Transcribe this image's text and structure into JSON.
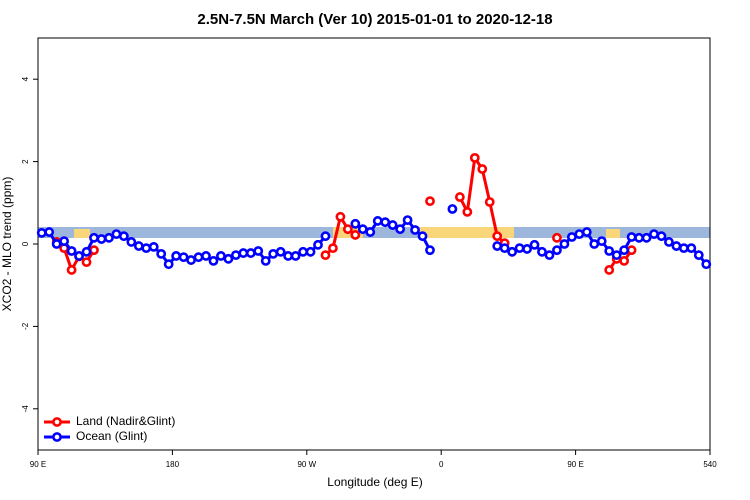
{
  "chart_data": {
    "type": "line",
    "title": "2.5N-7.5N March (Ver 10)   2015-01-01 to 2020-12-18",
    "xlabel": "Longitude (deg E)",
    "ylabel": "XCO2 - MLO trend (ppm)",
    "xlim": [
      90,
      540
    ],
    "xticks": [
      {
        "value": 90,
        "label": "90 E"
      },
      180,
      {
        "value": 270,
        "label": "90 W"
      },
      {
        "value": 360,
        "label": "0"
      },
      {
        "value": 450,
        "label": "90 E"
      },
      540
    ],
    "ylim": [
      -5,
      5
    ],
    "yticks": [
      -4,
      -2,
      0,
      2,
      4
    ],
    "legend": "bottom-left",
    "series": [
      {
        "name": "Land (Nadir&Glint)",
        "color": "#ff0000",
        "x": [
          102.5,
          107.5,
          112.5,
          117.5,
          122.5,
          127.5,
          132.5,
          282.5,
          287.5,
          292.5,
          297.5,
          302.5,
          307.5,
          352.5,
          357.5,
          372.5,
          377.5,
          382.5,
          387.5,
          392.5,
          397.5,
          402.5,
          407.5,
          437.5,
          442.5,
          472.5,
          477.5,
          482.5,
          487.5
        ],
        "values": [
          0.05,
          -0.1,
          -0.63,
          -0.3,
          -0.44,
          -0.15,
          null,
          -0.27,
          -0.1,
          0.66,
          0.36,
          0.22,
          null,
          1.04,
          null,
          1.14,
          0.78,
          2.09,
          1.82,
          1.02,
          0.19,
          0.02,
          null,
          0.15,
          null,
          -0.63,
          -0.36,
          -0.41,
          -0.15
        ]
      },
      {
        "name": "Ocean (Glint)",
        "color": "#0000ff",
        "x": [
          92.5,
          97.5,
          102.5,
          107.5,
          112.5,
          117.5,
          122.5,
          127.5,
          132.5,
          137.5,
          142.5,
          147.5,
          152.5,
          157.5,
          162.5,
          167.5,
          172.5,
          177.5,
          182.5,
          187.5,
          192.5,
          197.5,
          202.5,
          207.5,
          212.5,
          217.5,
          222.5,
          227.5,
          232.5,
          237.5,
          242.5,
          247.5,
          252.5,
          257.5,
          262.5,
          267.5,
          272.5,
          277.5,
          282.5,
          287.5,
          302.5,
          307.5,
          312.5,
          317.5,
          322.5,
          327.5,
          332.5,
          337.5,
          342.5,
          347.5,
          352.5,
          357.5,
          367.5,
          372.5,
          397.5,
          402.5,
          407.5,
          412.5,
          417.5,
          422.5,
          427.5,
          432.5,
          437.5,
          442.5,
          447.5,
          452.5,
          457.5,
          462.5,
          467.5,
          472.5,
          477.5,
          482.5,
          487.5,
          492.5,
          497.5,
          502.5,
          507.5,
          512.5,
          517.5,
          522.5,
          527.5,
          532.5,
          537.5
        ],
        "values": [
          0.27,
          0.29,
          0,
          0.07,
          -0.17,
          -0.29,
          -0.19,
          0.15,
          0.12,
          0.15,
          0.24,
          0.19,
          0.05,
          -0.05,
          -0.1,
          -0.07,
          -0.24,
          -0.49,
          -0.29,
          -0.32,
          -0.39,
          -0.32,
          -0.29,
          -0.41,
          -0.29,
          -0.36,
          -0.27,
          -0.22,
          -0.22,
          -0.17,
          -0.41,
          -0.24,
          -0.19,
          -0.29,
          -0.29,
          -0.19,
          -0.19,
          -0.02,
          0.19,
          null,
          0.49,
          0.36,
          0.29,
          0.56,
          0.53,
          0.46,
          0.36,
          0.58,
          0.34,
          0.19,
          -0.15,
          null,
          0.85,
          null,
          -0.05,
          -0.1,
          -0.19,
          -0.1,
          -0.12,
          -0.02,
          -0.19,
          -0.27,
          -0.15,
          0,
          0.17,
          0.24,
          0.29,
          0,
          0.07,
          -0.17,
          -0.27,
          -0.15,
          0.17,
          0.15,
          0.15,
          0.24,
          0.19,
          0.05,
          -0.05,
          -0.1,
          -0.1,
          -0.27,
          -0.49
        ]
      }
    ]
  }
}
